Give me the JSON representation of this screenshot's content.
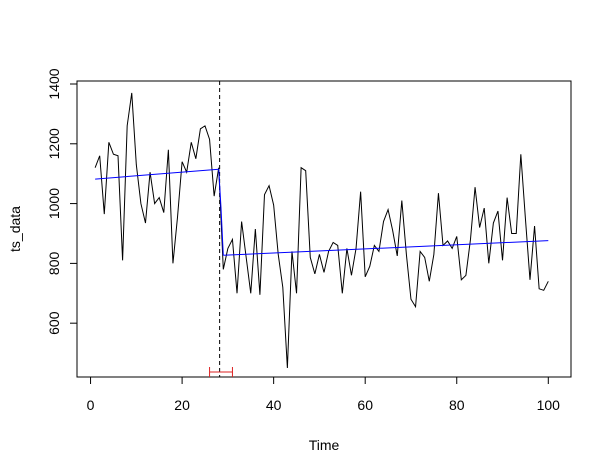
{
  "chart_data": {
    "type": "line",
    "xlabel": "Time",
    "ylabel": "ts_data",
    "xlim": [
      -2.96,
      104.96
    ],
    "ylim": [
      420,
      1410
    ],
    "x_ticks": [
      0,
      20,
      40,
      60,
      80,
      100
    ],
    "y_ticks": [
      600,
      800,
      1000,
      1200,
      1400
    ],
    "x_tick_labels": [
      "0",
      "20",
      "40",
      "60",
      "80",
      "100"
    ],
    "y_tick_labels": [
      "600",
      "800",
      "1000",
      "1200",
      "1400"
    ],
    "grid": false,
    "series": [
      {
        "role": "observed",
        "color": "#000000",
        "x": [
          1,
          2,
          3,
          4,
          5,
          6,
          7,
          8,
          9,
          10,
          11,
          12,
          13,
          14,
          15,
          16,
          17,
          18,
          19,
          20,
          21,
          22,
          23,
          24,
          25,
          26,
          27,
          28,
          29,
          30,
          31,
          32,
          33,
          34,
          35,
          36,
          37,
          38,
          39,
          40,
          41,
          42,
          43,
          44,
          45,
          46,
          47,
          48,
          49,
          50,
          51,
          52,
          53,
          54,
          55,
          56,
          57,
          58,
          59,
          60,
          61,
          62,
          63,
          64,
          65,
          66,
          67,
          68,
          69,
          70,
          71,
          72,
          73,
          74,
          75,
          76,
          77,
          78,
          79,
          80,
          81,
          82,
          83,
          84,
          85,
          86,
          87,
          88,
          89,
          90,
          91,
          92,
          93,
          94,
          95,
          96,
          97,
          98,
          99,
          100
        ],
        "y": [
          1120,
          1160,
          965,
          1205,
          1165,
          1160,
          810,
          1260,
          1370,
          1130,
          1000,
          935,
          1105,
          1000,
          1020,
          970,
          1180,
          800,
          955,
          1140,
          1105,
          1205,
          1150,
          1250,
          1260,
          1215,
          1025,
          1120,
          780,
          850,
          880,
          700,
          940,
          820,
          700,
          915,
          695,
          1030,
          1060,
          995,
          830,
          720,
          450,
          840,
          700,
          1120,
          1110,
          820,
          765,
          830,
          770,
          840,
          870,
          860,
          700,
          850,
          760,
          850,
          1040,
          755,
          790,
          860,
          840,
          940,
          980,
          910,
          825,
          1010,
          830,
          680,
          655,
          840,
          820,
          740,
          830,
          1035,
          860,
          875,
          850,
          890,
          745,
          760,
          880,
          1055,
          920,
          985,
          800,
          935,
          975,
          810,
          1020,
          900,
          900,
          1165,
          950,
          745,
          925,
          715,
          710,
          740
        ]
      },
      {
        "role": "fitted",
        "color": "#0000ff",
        "segments": [
          {
            "x": [
              1,
              28
            ],
            "y": [
              1082,
              1115
            ]
          },
          {
            "x": [
              29,
              100
            ],
            "y": [
              827,
              876
            ]
          }
        ],
        "transition": {
          "x": [
            28,
            28.5,
            29
          ],
          "y": [
            1115,
            985,
            827
          ]
        }
      }
    ],
    "annotations": [
      {
        "type": "vline",
        "x": 28.2,
        "style": "dashed",
        "color": "#000000"
      },
      {
        "type": "interval",
        "x0": 26,
        "x1": 31,
        "color": "#dd2222",
        "position": "bottom"
      }
    ]
  }
}
